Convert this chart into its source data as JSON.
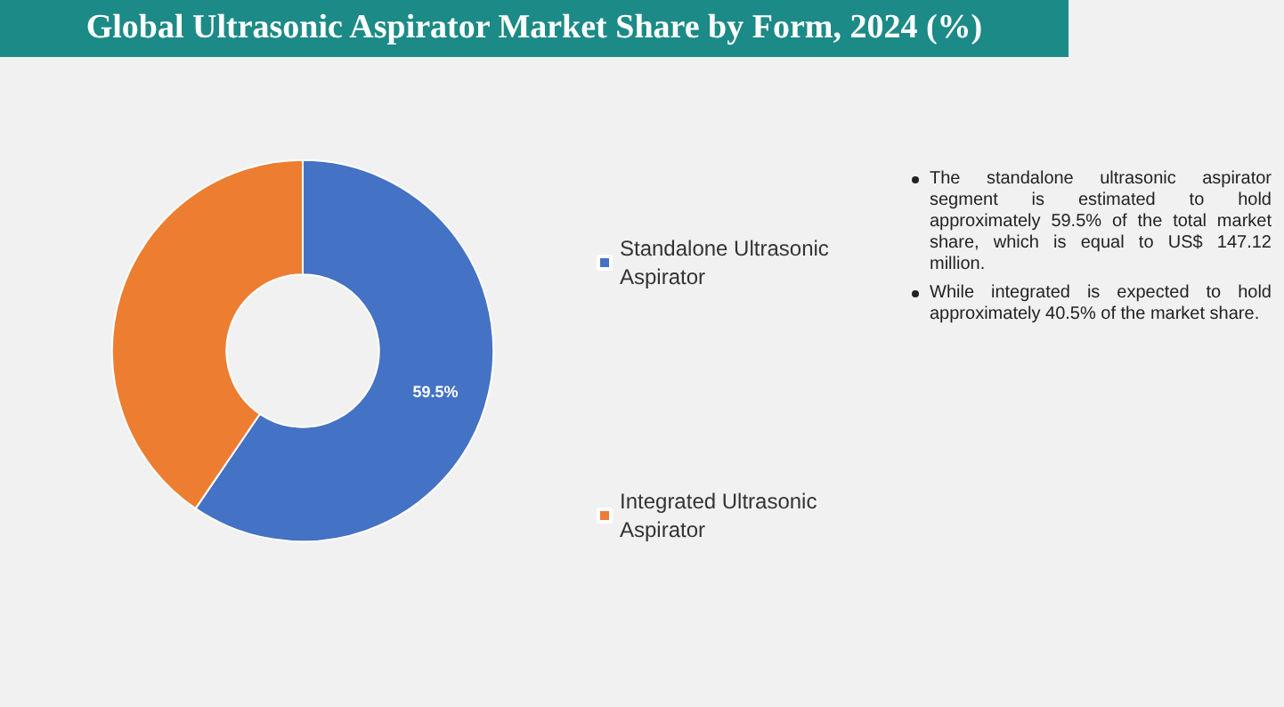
{
  "chart_data": {
    "type": "donut",
    "title": "Global Ultrasonic Aspirator Market Share by Form, 2024 (%)",
    "categories": [
      "Standalone Ultrasonic Aspirator",
      "Integrated Ultrasonic Aspirator"
    ],
    "values": [
      59.5,
      40.5
    ],
    "colors": [
      "#4472c4",
      "#ed7d31"
    ],
    "value_labels": [
      "59.5%",
      null
    ],
    "legend": "right",
    "annotations": [
      "The standalone ultrasonic aspirator segment is estimated to hold approximately 59.5% of the total market share, which is equal to US$ 147.12 million.",
      "While integrated is expected to hold approximately 40.5% of the market share."
    ]
  }
}
